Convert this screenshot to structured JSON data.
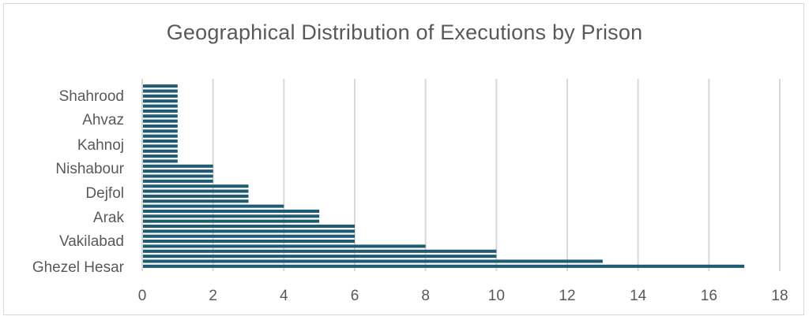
{
  "chart_data": {
    "type": "bar",
    "orientation": "horizontal",
    "title": "Geographical Distribution of Executions by Prison",
    "xlabel": "",
    "ylabel": "",
    "xlim": [
      0,
      18
    ],
    "x_ticks": [
      "0",
      "2",
      "4",
      "6",
      "8",
      "10",
      "12",
      "14",
      "16",
      "18"
    ],
    "visible_category_labels": [
      "Shahrood",
      "Ahvaz",
      "Kahnoj",
      "Nishabour",
      "Dejfol",
      "Arak",
      "Vakilabad",
      "Ghezel Hesar"
    ],
    "values_top_to_bottom": [
      1,
      1,
      1,
      1,
      1,
      1,
      1,
      1,
      1,
      1,
      1,
      1,
      1,
      1,
      1,
      1,
      2,
      2,
      2,
      2,
      3,
      3,
      3,
      3,
      4,
      5,
      5,
      5,
      6,
      6,
      6,
      6,
      8,
      10,
      10,
      13,
      17
    ],
    "grid": "vertical",
    "legend": "none",
    "bar_color": "#1f5c73",
    "grid_color": "#d9d9d9"
  }
}
